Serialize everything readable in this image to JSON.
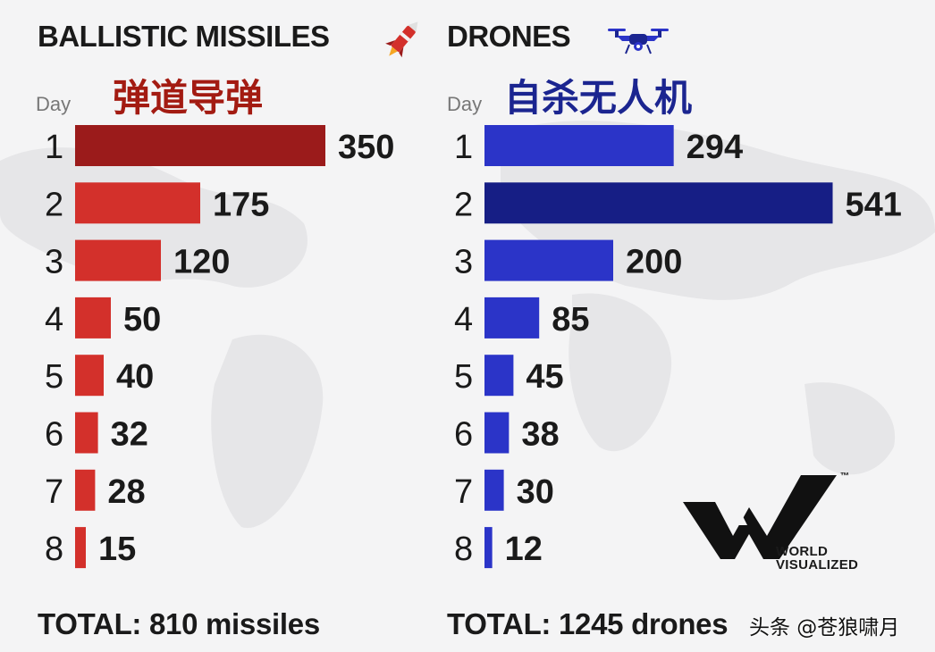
{
  "left": {
    "title": "BALLISTIC MISSILES",
    "cn_title": "弹道导弹",
    "day_label": "Day",
    "total": "TOTAL: 810 missiles",
    "icon": "rocket-icon"
  },
  "right": {
    "title": "DRONES",
    "cn_title": "自杀无人机",
    "day_label": "Day",
    "total": "TOTAL: 1245 drones",
    "icon": "drone-icon"
  },
  "logo": {
    "line1": "WORLD",
    "line2": "VISUALIZED",
    "tm": "™"
  },
  "watermark": "头条 @苍狼啸月",
  "colors": {
    "missile_bar": "#d3302b",
    "missile_bar_max": "#9b1b1b",
    "drone_bar": "#2b34c8",
    "drone_bar_max": "#161e85",
    "cn_missile": "#a31b12",
    "cn_drone": "#1b2590"
  },
  "chart_data": [
    {
      "type": "bar",
      "orientation": "horizontal",
      "title": "BALLISTIC MISSILES",
      "ylabel": "Day",
      "categories": [
        "1",
        "2",
        "3",
        "4",
        "5",
        "6",
        "7",
        "8"
      ],
      "values": [
        350,
        175,
        120,
        50,
        40,
        32,
        28,
        15
      ],
      "highlight_index": 0
    },
    {
      "type": "bar",
      "orientation": "horizontal",
      "title": "DRONES",
      "ylabel": "Day",
      "categories": [
        "1",
        "2",
        "3",
        "4",
        "5",
        "6",
        "7",
        "8"
      ],
      "values": [
        294,
        541,
        200,
        85,
        45,
        38,
        30,
        12
      ],
      "highlight_index": 1
    }
  ]
}
